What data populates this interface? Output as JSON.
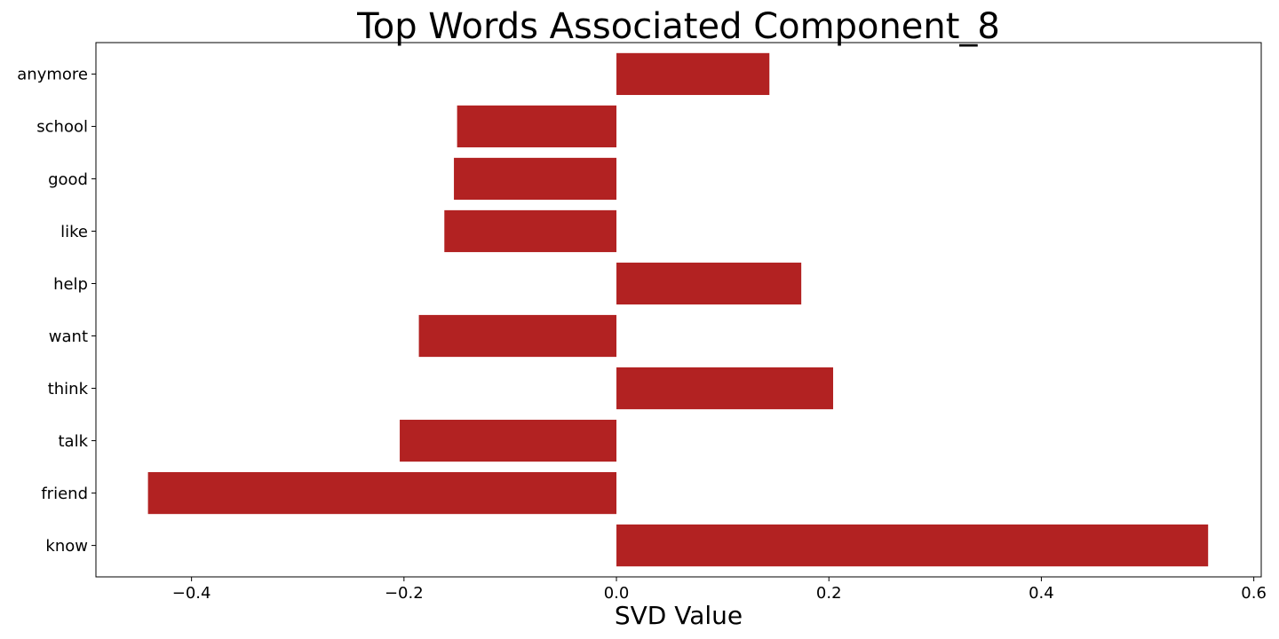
{
  "chart_data": {
    "type": "bar",
    "orientation": "horizontal",
    "title": "Top Words Associated Component_8",
    "xlabel": "SVD Value",
    "ylabel": "",
    "categories": [
      "know",
      "friend",
      "talk",
      "think",
      "want",
      "help",
      "like",
      "good",
      "school",
      "anymore"
    ],
    "values": [
      0.557,
      -0.441,
      -0.204,
      0.204,
      -0.186,
      0.174,
      -0.162,
      -0.153,
      -0.15,
      0.144
    ],
    "xlim": [
      -0.49,
      0.607
    ],
    "xticks": [
      -0.4,
      -0.2,
      0.0,
      0.2,
      0.4,
      0.6
    ],
    "xtick_labels": [
      "−0.4",
      "−0.2",
      "0.0",
      "0.2",
      "0.4",
      "0.6"
    ],
    "bar_color": "#b22222",
    "grid": false,
    "legend": "none"
  }
}
